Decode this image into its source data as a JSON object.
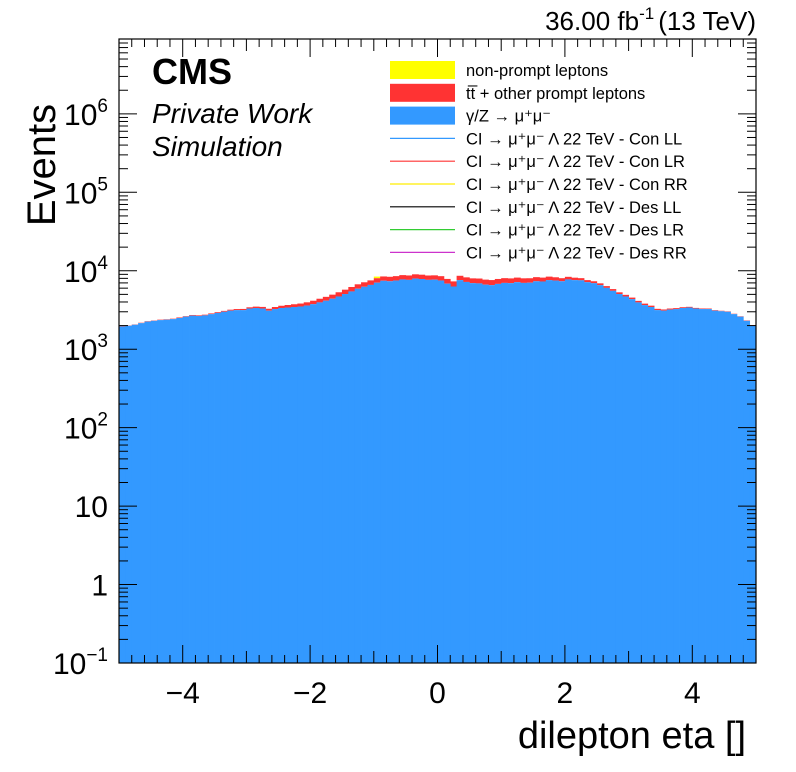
{
  "header": {
    "lumi_value": "36.00 fb",
    "lumi_sup": "-1",
    "energy": "(13 TeV)"
  },
  "cms_label": {
    "title": "CMS",
    "line1": "Private Work",
    "line2": "Simulation"
  },
  "legend": {
    "items": [
      {
        "label": "non-prompt leptons",
        "color": "#ffff00",
        "kind": "fill"
      },
      {
        "label": "tt̅ + other prompt leptons",
        "color": "#ff3333",
        "kind": "fill"
      },
      {
        "label": "γ/Z → μ⁺μ⁻",
        "color": "#3399ff",
        "kind": "fill"
      },
      {
        "label": "CI → μ⁺μ⁻ Λ 22 TeV - Con LL",
        "color": "#3399ff",
        "kind": "line"
      },
      {
        "label": "CI → μ⁺μ⁻ Λ 22 TeV - Con LR",
        "color": "#ff3333",
        "kind": "line"
      },
      {
        "label": "CI → μ⁺μ⁻ Λ 22 TeV - Con RR",
        "color": "#ffee00",
        "kind": "line"
      },
      {
        "label": "CI → μ⁺μ⁻ Λ 22 TeV - Des LL",
        "color": "#000000",
        "kind": "line"
      },
      {
        "label": "CI → μ⁺μ⁻ Λ 22 TeV - Des LR",
        "color": "#33cc33",
        "kind": "line"
      },
      {
        "label": "CI → μ⁺μ⁻ Λ 22 TeV - Des RR",
        "color": "#cc33cc",
        "kind": "line"
      }
    ]
  },
  "chart_data": {
    "type": "bar",
    "subtype": "stacked-histogram",
    "xlabel": "dilepton eta []",
    "ylabel": "Events",
    "xlim": [
      -5,
      5
    ],
    "ylim": [
      0.1,
      9000000
    ],
    "y_scale": "log",
    "x_ticks": [
      -4,
      -2,
      0,
      2,
      4
    ],
    "x_tick_labels": [
      "−4",
      "−2",
      "0",
      "2",
      "4"
    ],
    "y_ticks": [
      0.1,
      1,
      10,
      100,
      1000,
      10000,
      100000,
      1000000
    ],
    "y_tick_labels": [
      {
        "base": "10",
        "exp": "−1"
      },
      {
        "base": "1",
        "exp": ""
      },
      {
        "base": "10",
        "exp": ""
      },
      {
        "base": "10",
        "exp": "2"
      },
      {
        "base": "10",
        "exp": "3"
      },
      {
        "base": "10",
        "exp": "4"
      },
      {
        "base": "10",
        "exp": "5"
      },
      {
        "base": "10",
        "exp": "6"
      }
    ],
    "grid": false,
    "legend_position": "top-right",
    "bin_edges_range": [
      -5,
      5
    ],
    "n_bins": 100,
    "colors": {
      "dy": "#3399ff",
      "ttbar": "#ff3333",
      "nonprompt": "#ffff00"
    },
    "series": [
      {
        "name": "γ/Z → μ⁺μ⁻",
        "stack_order": 0,
        "values": [
          1950,
          1990,
          2050,
          2150,
          2250,
          2300,
          2350,
          2380,
          2420,
          2500,
          2600,
          2680,
          2650,
          2700,
          2800,
          2900,
          3000,
          3100,
          3150,
          3150,
          3300,
          3350,
          3300,
          3100,
          3250,
          3350,
          3400,
          3450,
          3500,
          3600,
          3750,
          3950,
          4150,
          4400,
          4700,
          5050,
          5450,
          5900,
          6250,
          6600,
          7050,
          7450,
          7350,
          7500,
          7750,
          7650,
          7950,
          7850,
          7650,
          7700,
          7500,
          6850,
          6300,
          7600,
          7200,
          6950,
          6900,
          6650,
          6550,
          6800,
          7000,
          6950,
          7150,
          7000,
          7050,
          7350,
          7300,
          7600,
          7500,
          7350,
          7750,
          7600,
          7550,
          7150,
          6950,
          6550,
          6050,
          5550,
          5050,
          4700,
          4350,
          3950,
          3650,
          3450,
          3150,
          3100,
          3200,
          3250,
          3350,
          3400,
          3300,
          3250,
          3250,
          3100,
          3050,
          3000,
          2800,
          2600,
          2300,
          2000
        ]
      },
      {
        "name": "tt̅ + other prompt leptons",
        "stack_order": 1,
        "values": [
          20,
          20,
          20,
          25,
          25,
          25,
          30,
          30,
          30,
          40,
          40,
          50,
          50,
          55,
          60,
          70,
          80,
          90,
          100,
          110,
          120,
          140,
          160,
          180,
          200,
          230,
          260,
          290,
          320,
          360,
          400,
          450,
          500,
          560,
          620,
          690,
          760,
          820,
          880,
          940,
          980,
          1010,
          1030,
          1040,
          1050,
          1060,
          1060,
          1060,
          1050,
          1040,
          1030,
          1020,
          1020,
          1030,
          1040,
          1050,
          1060,
          1060,
          1060,
          1060,
          1050,
          1040,
          1030,
          1010,
          980,
          940,
          880,
          820,
          760,
          690,
          620,
          560,
          500,
          450,
          400,
          360,
          320,
          290,
          260,
          230,
          200,
          180,
          160,
          140,
          120,
          110,
          100,
          90,
          80,
          70,
          60,
          55,
          50,
          50,
          40,
          40,
          30,
          30,
          30,
          25
        ]
      },
      {
        "name": "non-prompt leptons",
        "stack_order": 2,
        "values": [
          0,
          0,
          0,
          0,
          0,
          0,
          0,
          0,
          0,
          0,
          0,
          0,
          0,
          0,
          0,
          0,
          0,
          0,
          0,
          0,
          0,
          0,
          0,
          0,
          0,
          0,
          0,
          0,
          0,
          0,
          0,
          0,
          0,
          0,
          0,
          0,
          0,
          0,
          0,
          0,
          400,
          0,
          0,
          0,
          0,
          0,
          0,
          0,
          0,
          0,
          0,
          0,
          0,
          0,
          0,
          0,
          0,
          0,
          0,
          0,
          0,
          0,
          0,
          0,
          0,
          0,
          0,
          0,
          0,
          0,
          0,
          0,
          0,
          0,
          0,
          0,
          0,
          0,
          0,
          0,
          0,
          0,
          0,
          0,
          0,
          0,
          0,
          0,
          0,
          0,
          0,
          0,
          0,
          0,
          0,
          0,
          0,
          0,
          0,
          0
        ]
      }
    ],
    "signal_lines": [
      {
        "name": "CI → μ⁺μ⁻ Λ 22 TeV - Con LL",
        "color": "#3399ff"
      },
      {
        "name": "CI → μ⁺μ⁻ Λ 22 TeV - Con LR",
        "color": "#ff3333"
      },
      {
        "name": "CI → μ⁺μ⁻ Λ 22 TeV - Con RR",
        "color": "#ffee00"
      },
      {
        "name": "CI → μ⁺μ⁻ Λ 22 TeV - Des LL",
        "color": "#000000"
      },
      {
        "name": "CI → μ⁺μ⁻ Λ 22 TeV - Des LR",
        "color": "#33cc33"
      },
      {
        "name": "CI → μ⁺μ⁻ Λ 22 TeV - Des RR",
        "color": "#cc33cc"
      }
    ]
  }
}
